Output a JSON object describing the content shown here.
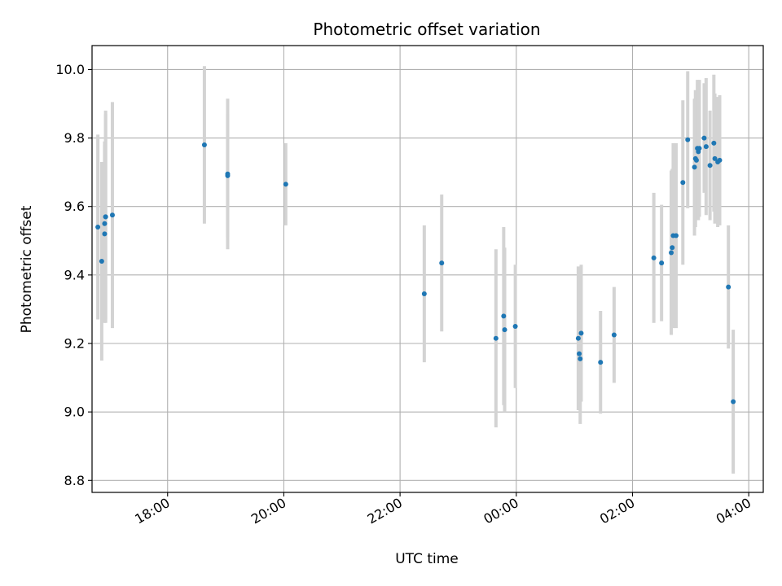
{
  "chart_data": {
    "type": "scatter",
    "title": "Photometric offset variation",
    "xlabel": "UTC time",
    "ylabel": "Photometric offset",
    "x_tick_labels": [
      "18:00",
      "20:00",
      "22:00",
      "00:00",
      "02:00",
      "04:00"
    ],
    "x_tick_hours": [
      18,
      20,
      22,
      24,
      26,
      28
    ],
    "y_tick_labels": [
      "8.8",
      "9.0",
      "9.2",
      "9.4",
      "9.6",
      "9.8",
      "10.0"
    ],
    "y_ticks": [
      8.8,
      9.0,
      9.2,
      9.4,
      9.6,
      9.8,
      10.0
    ],
    "xlim": [
      "16:42",
      "04:15"
    ],
    "ylim": [
      8.765,
      10.07
    ],
    "grid": true,
    "colors": {
      "points": "#1f77b4",
      "errorbars": "#d3d3d3",
      "grid": "#b0b0b0"
    },
    "series": [
      {
        "time": [
          "16:48",
          "16:52",
          "16:55",
          "16:55",
          "16:56",
          "16:56",
          "17:03",
          "18:38",
          "19:02",
          "19:02",
          "20:02",
          "22:25",
          "22:43",
          "23:39",
          "23:47",
          "23:48",
          "23:59",
          "01:04",
          "01:05",
          "01:06",
          "01:07",
          "01:27",
          "01:41",
          "02:22",
          "02:30",
          "02:40",
          "02:41",
          "02:42",
          "02:45",
          "02:52",
          "02:57",
          "03:04",
          "03:05",
          "03:06",
          "03:07",
          "03:08",
          "03:09",
          "03:14",
          "03:16",
          "03:20",
          "03:24",
          "03:25",
          "03:28",
          "03:30",
          "03:39",
          "03:44"
        ],
        "y": [
          9.54,
          9.44,
          9.52,
          9.55,
          9.57,
          9.57,
          9.575,
          9.78,
          9.69,
          9.695,
          9.665,
          9.345,
          9.435,
          9.215,
          9.28,
          9.24,
          9.25,
          9.215,
          9.17,
          9.155,
          9.23,
          9.145,
          9.225,
          9.45,
          9.435,
          9.465,
          9.48,
          9.515,
          9.515,
          9.67,
          9.795,
          9.715,
          9.74,
          9.735,
          9.77,
          9.76,
          9.77,
          9.8,
          9.775,
          9.72,
          9.785,
          9.74,
          9.73,
          9.735,
          9.365,
          9.03
        ],
        "yerr": [
          0.27,
          0.29,
          0.26,
          0.24,
          0.3,
          0.31,
          0.33,
          0.23,
          0.18,
          0.22,
          0.12,
          0.2,
          0.2,
          0.26,
          0.26,
          0.24,
          0.18,
          0.21,
          0.16,
          0.19,
          0.2,
          0.15,
          0.14,
          0.19,
          0.17,
          0.24,
          0.23,
          0.27,
          0.27,
          0.24,
          0.2,
          0.2,
          0.2,
          0.16,
          0.2,
          0.2,
          0.2,
          0.16,
          0.2,
          0.16,
          0.2,
          0.19,
          0.19,
          0.19,
          0.18,
          0.21
        ]
      }
    ]
  }
}
